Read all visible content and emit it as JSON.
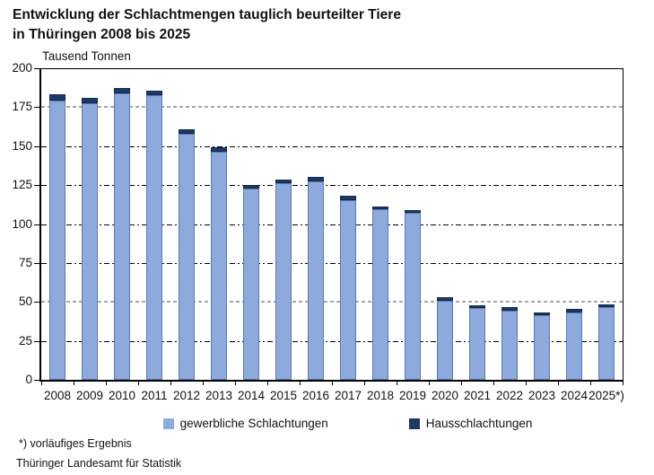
{
  "title": {
    "line1": "Entwicklung der Schlachtmengen tauglich beurteilter Tiere",
    "line2": "in Thüringen 2008 bis 2025"
  },
  "unit_label": "Tausend Tonnen",
  "footnotes": [
    "*) vorläufiges Ergebnis",
    "Thüringer Landesamt für Statistik"
  ],
  "colors": {
    "bar_light": "#8EA9DB",
    "bar_light_border": "#5b79b1",
    "bar_dark": "#1F3864",
    "bar_dark_border": "#142947",
    "gridline_dark": "#000000",
    "gridline_gray": "#a6a6a6",
    "axis": "#000000"
  },
  "chart_data": {
    "type": "bar",
    "stacked": true,
    "title": "Entwicklung der Schlachtmengen tauglich beurteilter Tiere in Thüringen 2008 bis 2025",
    "ylabel": "Tausend Tonnen",
    "xlabel": "",
    "ylim": [
      0,
      200
    ],
    "yticks": [
      0,
      25,
      50,
      75,
      100,
      125,
      150,
      175,
      200
    ],
    "grid": true,
    "legend_position": "bottom",
    "categories": [
      "2008",
      "2009",
      "2010",
      "2011",
      "2012",
      "2013",
      "2014",
      "2015",
      "2016",
      "2017",
      "2018",
      "2019",
      "2020",
      "2021",
      "2022",
      "2023",
      "2024",
      "2025*)"
    ],
    "series": [
      {
        "name": "gewerbliche Schlachtungen",
        "color": "#8EA9DB",
        "values": [
          179.5,
          177.5,
          184,
          182.5,
          158,
          146.5,
          122.5,
          126,
          127.5,
          115.5,
          109.5,
          107,
          51,
          46,
          44.5,
          41.5,
          43.5,
          46.5
        ]
      },
      {
        "name": "Hausschlachtungen",
        "color": "#1F3864",
        "values": [
          3.5,
          3.5,
          3.5,
          3,
          3,
          2.5,
          2.5,
          2.5,
          2.5,
          2.5,
          2,
          2,
          2,
          2,
          2,
          2,
          2,
          2
        ]
      }
    ],
    "totals": [
      183,
      181,
      187.5,
      185.5,
      161,
      149,
      125,
      128.5,
      130,
      118,
      111.5,
      109,
      53,
      48,
      46.5,
      43.5,
      45.5,
      48.5
    ],
    "gridlines": [
      {
        "value": 25,
        "style": "dark"
      },
      {
        "value": 50,
        "style": "gray"
      },
      {
        "value": 75,
        "style": "dark"
      },
      {
        "value": 100,
        "style": "dark"
      },
      {
        "value": 125,
        "style": "dark"
      },
      {
        "value": 150,
        "style": "dark"
      },
      {
        "value": 175,
        "style": "gray"
      }
    ]
  }
}
